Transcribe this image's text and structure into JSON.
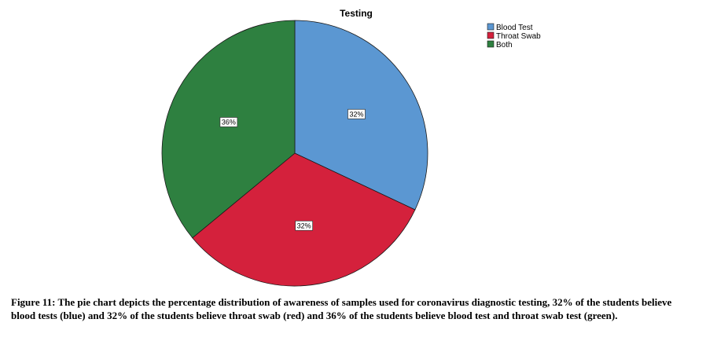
{
  "chart_data": {
    "type": "pie",
    "title": "Testing",
    "categories": [
      "Blood Test",
      "Throat Swab",
      "Both"
    ],
    "values": [
      32,
      32,
      36
    ],
    "data_labels": [
      "32%",
      "32%",
      "36%"
    ],
    "colors": [
      "#5b97d2",
      "#d4213c",
      "#2e8040"
    ],
    "legend_position": "top-right"
  },
  "caption": "Figure 11: The pie chart depicts the percentage distribution of awareness of samples used for coronavirus diagnostic testing, 32% of the students believe blood tests (blue) and 32% of the students believe throat swab (red) and 36% of the students believe blood test and throat swab test (green)."
}
